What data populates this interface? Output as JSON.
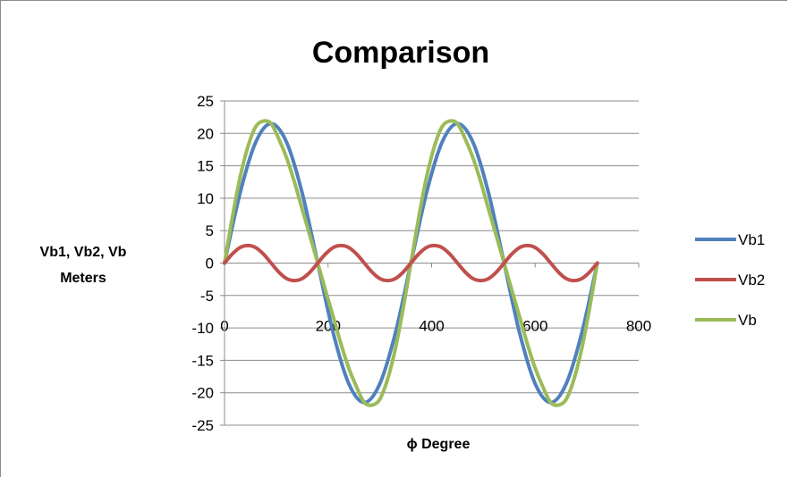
{
  "chart_data": {
    "type": "line",
    "title": "Comparison",
    "xlabel": "ϕ Degree",
    "ylabel": [
      "Vb1, Vb2, Vb",
      "Meters"
    ],
    "xlim": [
      0,
      800
    ],
    "ylim": [
      -25,
      25
    ],
    "xticks": [
      0,
      200,
      400,
      600,
      800
    ],
    "yticks": [
      25,
      20,
      15,
      10,
      5,
      0,
      -5,
      -10,
      -15,
      -20,
      -25
    ],
    "grid": "horizontal",
    "legend_position": "right",
    "series": [
      {
        "name": "Vb1",
        "color": "#4f81bd",
        "x": [
          0,
          30,
          60,
          90,
          120,
          150,
          180,
          210,
          240,
          270,
          300,
          330,
          360,
          390,
          420,
          450,
          480,
          510,
          540,
          570,
          600,
          630,
          660,
          690,
          720
        ],
        "y": [
          0,
          10.8,
          18.6,
          21.5,
          18.6,
          10.8,
          0,
          -10.8,
          -18.6,
          -21.5,
          -18.6,
          -10.8,
          0,
          10.8,
          18.6,
          21.5,
          18.6,
          10.8,
          0,
          -10.8,
          -18.6,
          -21.5,
          -18.6,
          -10.8,
          0
        ]
      },
      {
        "name": "Vb2",
        "color": "#c0504d",
        "x": [
          0,
          15,
          30,
          45,
          60,
          75,
          90,
          105,
          120,
          135,
          150,
          165,
          180,
          195,
          210,
          225,
          240,
          255,
          270,
          285,
          300,
          315,
          330,
          345,
          360,
          375,
          390,
          405,
          420,
          435,
          450,
          465,
          480,
          495,
          510,
          525,
          540,
          555,
          570,
          585,
          600,
          615,
          630,
          645,
          660,
          675,
          690,
          705,
          720
        ],
        "y": [
          0,
          1.4,
          2.4,
          2.7,
          2.4,
          1.4,
          0,
          -1.4,
          -2.4,
          -2.7,
          -2.4,
          -1.4,
          0,
          1.4,
          2.4,
          2.7,
          2.4,
          1.4,
          0,
          -1.4,
          -2.4,
          -2.7,
          -2.4,
          -1.4,
          0,
          1.4,
          2.4,
          2.7,
          2.4,
          1.4,
          0,
          -1.4,
          -2.4,
          -2.7,
          -2.4,
          -1.4,
          0,
          1.4,
          2.4,
          2.7,
          2.4,
          1.4,
          0,
          -1.4,
          -2.4,
          -2.7,
          -2.4,
          -1.4,
          0
        ]
      },
      {
        "name": "Vb",
        "color": "#9bbb59",
        "x": [
          0,
          15,
          30,
          45,
          60,
          75,
          90,
          105,
          120,
          135,
          150,
          165,
          180,
          195,
          210,
          225,
          240,
          255,
          270,
          285,
          300,
          315,
          330,
          345,
          360,
          375,
          390,
          405,
          420,
          435,
          450,
          465,
          480,
          495,
          510,
          525,
          540,
          555,
          570,
          585,
          600,
          615,
          630,
          645,
          660,
          675,
          690,
          705,
          720
        ],
        "y": [
          0,
          7.0,
          13.2,
          17.9,
          21.0,
          21.9,
          21.5,
          19.1,
          16.2,
          12.5,
          8.3,
          4.2,
          0,
          -4.2,
          -8.3,
          -12.5,
          -16.2,
          -19.1,
          -21.5,
          -21.9,
          -21.0,
          -17.9,
          -13.2,
          -7.0,
          0,
          7.0,
          13.2,
          17.9,
          21.0,
          21.9,
          21.5,
          19.1,
          16.2,
          12.5,
          8.3,
          4.2,
          0,
          -4.2,
          -8.3,
          -12.5,
          -16.2,
          -19.1,
          -21.5,
          -21.9,
          -21.0,
          -17.9,
          -13.2,
          -7.0,
          0
        ]
      }
    ]
  }
}
